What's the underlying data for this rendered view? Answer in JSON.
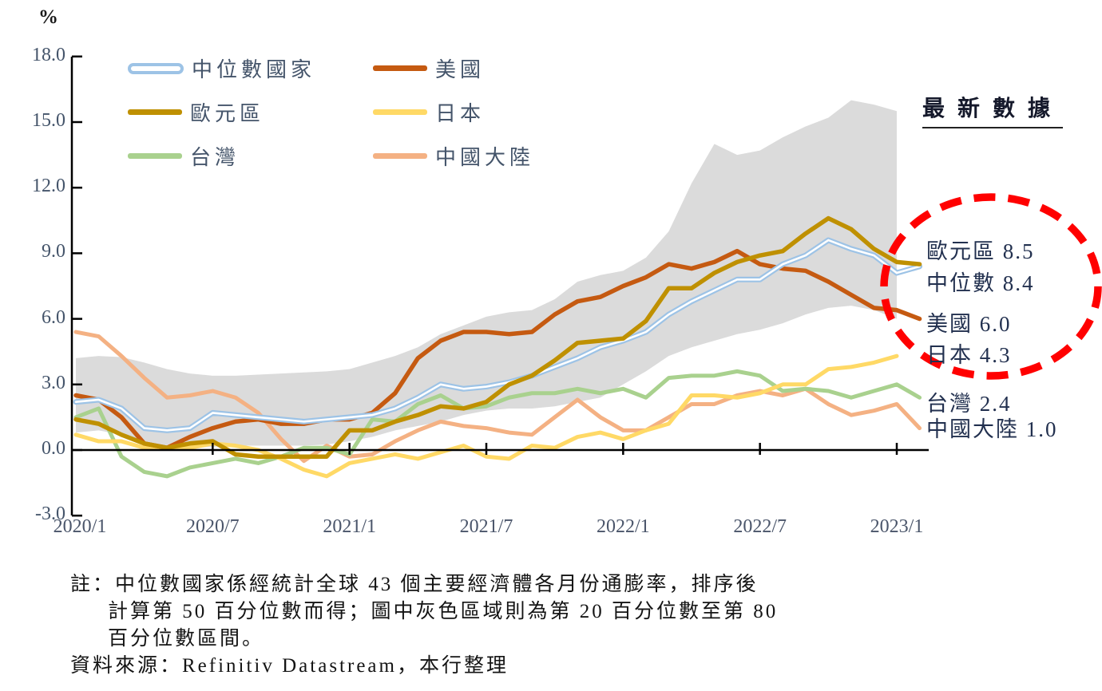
{
  "page": {
    "percent_symbol": "%"
  },
  "legend": {
    "items": [
      {
        "id": "median",
        "label": "中位數國家",
        "color": "#9DC3E6",
        "swatch": "pill",
        "column": 0,
        "row": 0
      },
      {
        "id": "euro",
        "label": "歐元區",
        "color": "#BF9000",
        "swatch": "line",
        "column": 0,
        "row": 1
      },
      {
        "id": "taiwan",
        "label": "台灣",
        "color": "#A9D18E",
        "swatch": "line",
        "column": 0,
        "row": 2
      },
      {
        "id": "us",
        "label": "美國",
        "color": "#C55A11",
        "swatch": "line",
        "column": 1,
        "row": 0
      },
      {
        "id": "japan",
        "label": "日本",
        "color": "#FFD966",
        "swatch": "line",
        "column": 1,
        "row": 1
      },
      {
        "id": "china",
        "label": "中國大陸",
        "color": "#F4B183",
        "swatch": "line",
        "column": 1,
        "row": 2
      }
    ]
  },
  "latest": {
    "header": "最新數據",
    "entries": [
      {
        "label": "歐元區",
        "value": "8.5"
      },
      {
        "label": "中位數",
        "value": "8.4"
      },
      {
        "label": "美國",
        "value": "6.0"
      },
      {
        "label": "日本",
        "value": "4.3"
      },
      {
        "label": "台灣",
        "value": "2.4"
      },
      {
        "label": "中國大陸",
        "value": "1.0"
      }
    ]
  },
  "notes": {
    "line1": "註：中位數國家係經統計全球 43 個主要經濟體各月份通膨率，排序後",
    "line2": "計算第 50 百分位數而得；圖中灰色區域則為第 20 百分位數至第 80",
    "line3": "百分位數區間。",
    "source": "資料來源：Refinitiv Datastream，本行整理"
  },
  "chart_data": {
    "type": "line",
    "unit": "%",
    "title": "",
    "x_tick_labels": [
      "2020/1",
      "2020/7",
      "2021/1",
      "2021/7",
      "2022/1",
      "2022/7",
      "2023/1"
    ],
    "x_tick_months": [
      0,
      6,
      12,
      18,
      24,
      30,
      36
    ],
    "months_start": "2020/1",
    "months_end": "2023/2",
    "y_ticks": [
      18,
      15,
      12,
      9,
      6,
      3,
      0,
      -3
    ],
    "ylim": [
      -3,
      18
    ],
    "grid": false,
    "legend_position": "top-left-inside",
    "band": {
      "name": "第20百分位數至第80百分位數區間",
      "color": "#DBDBDB",
      "top": [
        4.2,
        4.3,
        4.25,
        4.0,
        3.7,
        3.5,
        3.4,
        3.4,
        3.45,
        3.5,
        3.55,
        3.6,
        3.7,
        4.0,
        4.3,
        4.7,
        5.3,
        5.7,
        6.1,
        6.3,
        6.4,
        6.9,
        7.7,
        8.0,
        8.2,
        8.8,
        10.0,
        12.2,
        14.0,
        13.5,
        13.7,
        14.3,
        14.8,
        15.2,
        16.0,
        15.8,
        15.5
      ],
      "bottom": [
        0.8,
        0.9,
        0.7,
        0.3,
        0.15,
        0.1,
        0.15,
        0.2,
        0.2,
        0.2,
        0.2,
        0.25,
        0.4,
        0.6,
        0.9,
        1.1,
        1.3,
        1.6,
        1.8,
        1.9,
        1.9,
        2.0,
        2.2,
        2.4,
        3.0,
        3.6,
        4.3,
        4.7,
        5.0,
        5.3,
        5.5,
        5.8,
        6.2,
        6.5,
        6.6,
        6.4,
        6.0
      ]
    },
    "series": [
      {
        "id": "china",
        "name": "中國大陸",
        "color": "#F4B183",
        "width": 5,
        "values": [
          5.4,
          5.2,
          4.3,
          3.3,
          2.4,
          2.5,
          2.7,
          2.4,
          1.7,
          0.5,
          -0.5,
          0.2,
          -0.3,
          -0.2,
          0.4,
          0.9,
          1.3,
          1.1,
          1.0,
          0.8,
          0.7,
          1.5,
          2.3,
          1.5,
          0.9,
          0.9,
          1.5,
          2.1,
          2.1,
          2.5,
          2.7,
          2.5,
          2.8,
          2.1,
          1.6,
          1.8,
          2.1,
          1.0
        ]
      },
      {
        "id": "taiwan",
        "name": "台灣",
        "color": "#A9D18E",
        "width": 5,
        "values": [
          1.5,
          1.9,
          -0.3,
          -1.0,
          -1.2,
          -0.8,
          -0.6,
          -0.4,
          -0.6,
          -0.3,
          0.1,
          0.1,
          -0.2,
          1.4,
          1.3,
          2.1,
          2.5,
          1.9,
          2.0,
          2.4,
          2.6,
          2.6,
          2.8,
          2.6,
          2.8,
          2.4,
          3.3,
          3.4,
          3.4,
          3.6,
          3.4,
          2.7,
          2.8,
          2.7,
          2.4,
          2.7,
          3.0,
          2.4
        ]
      },
      {
        "id": "japan",
        "name": "日本",
        "color": "#FFD966",
        "width": 5,
        "values": [
          0.7,
          0.4,
          0.4,
          0.1,
          0.1,
          0.1,
          0.3,
          0.2,
          0.0,
          -0.4,
          -0.9,
          -1.2,
          -0.6,
          -0.4,
          -0.2,
          -0.4,
          -0.1,
          0.2,
          -0.3,
          -0.4,
          0.2,
          0.1,
          0.6,
          0.8,
          0.5,
          0.9,
          1.2,
          2.5,
          2.5,
          2.4,
          2.6,
          3.0,
          3.0,
          3.7,
          3.8,
          4.0,
          4.3
        ]
      },
      {
        "id": "us",
        "name": "美國",
        "color": "#C55A11",
        "width": 5.5,
        "values": [
          2.5,
          2.3,
          1.5,
          0.3,
          0.1,
          0.6,
          1.0,
          1.3,
          1.4,
          1.2,
          1.2,
          1.4,
          1.4,
          1.7,
          2.6,
          4.2,
          5.0,
          5.4,
          5.4,
          5.3,
          5.4,
          6.2,
          6.8,
          7.0,
          7.5,
          7.9,
          8.5,
          8.3,
          8.6,
          9.1,
          8.5,
          8.3,
          8.2,
          7.7,
          7.1,
          6.5,
          6.4,
          6.0
        ]
      },
      {
        "id": "median",
        "name": "中位數國家",
        "color": "#9DC3E6",
        "core_color": "#FFFFFF",
        "width": 7,
        "values": [
          2.2,
          2.3,
          1.9,
          1.0,
          0.9,
          1.0,
          1.7,
          1.6,
          1.5,
          1.4,
          1.3,
          1.4,
          1.5,
          1.6,
          1.9,
          2.4,
          3.0,
          2.8,
          2.9,
          3.1,
          3.4,
          3.8,
          4.2,
          4.7,
          5.0,
          5.4,
          6.2,
          6.8,
          7.3,
          7.8,
          7.8,
          8.5,
          8.9,
          9.6,
          9.2,
          8.9,
          8.1,
          8.4
        ]
      },
      {
        "id": "euro",
        "name": "歐元區",
        "color": "#BF9000",
        "width": 5.5,
        "values": [
          1.4,
          1.2,
          0.7,
          0.3,
          0.1,
          0.3,
          0.4,
          -0.2,
          -0.3,
          -0.3,
          -0.3,
          -0.3,
          0.9,
          0.9,
          1.3,
          1.6,
          2.0,
          1.9,
          2.2,
          3.0,
          3.4,
          4.1,
          4.9,
          5.0,
          5.1,
          5.9,
          7.4,
          7.4,
          8.1,
          8.6,
          8.9,
          9.1,
          9.9,
          10.6,
          10.1,
          9.2,
          8.6,
          8.5
        ]
      }
    ],
    "highlight_ellipse": {
      "color": "#FF0000",
      "style": "dashed"
    }
  }
}
